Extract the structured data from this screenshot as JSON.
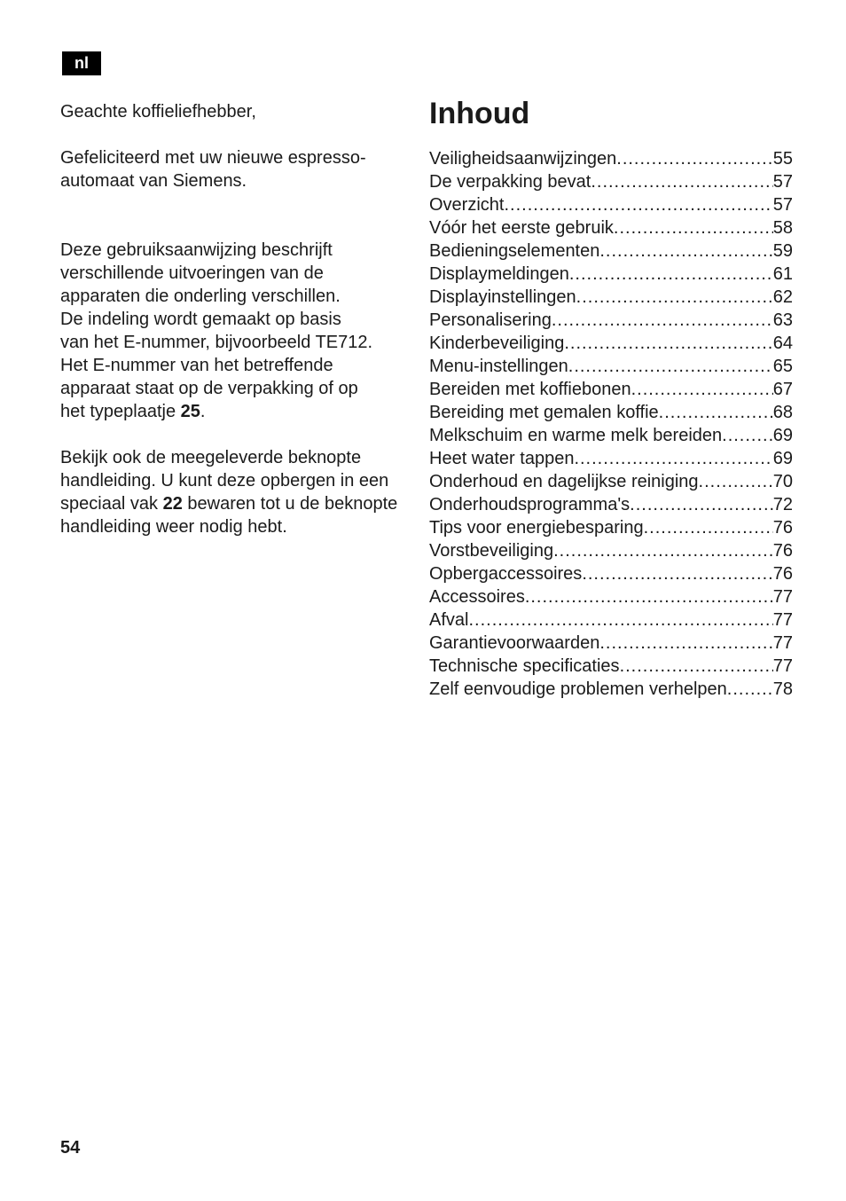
{
  "lang_badge": "nl",
  "left": {
    "greeting": "Geachte koffieliefhebber,",
    "congrats_prefix": "Gefeliciteerd met uw nieuwe espresso",
    "congrats_suffix": "automaat van Siemens.",
    "desc_l1": "Deze gebruiksaanwijzing beschrijft",
    "desc_l2": "verschillende uitvoeringen van de",
    "desc_l3": "apparaten die onderling verschillen.",
    "desc_l4": "De indeling wordt gemaakt op basis",
    "desc_l5": "van het E-nummer, bijvoorbeeld TE712.",
    "desc_l6": "Het E-nummer van het betreffende",
    "desc_l7": "apparaat staat op de verpakking of op",
    "desc_l8a": "het typeplaatje ",
    "desc_l8b": "25",
    "desc_l8c": ".",
    "ref_l1": "Bekijk ook de meegeleverde beknopte",
    "ref_l2": "handleiding. U kunt deze opbergen in een",
    "ref_l3a": "speciaal vak ",
    "ref_l3b": "22",
    "ref_l3c": " bewaren tot u de beknopte",
    "ref_l4": "handleiding weer nodig hebt."
  },
  "right": {
    "title": "Inhoud"
  },
  "toc": [
    {
      "label": "Veiligheidsaanwijzingen",
      "page": "55"
    },
    {
      "label": "De verpakking bevat",
      "page": "57"
    },
    {
      "label": "Overzicht ",
      "page": "57"
    },
    {
      "label": "Vóór het eerste gebruik ",
      "page": "58"
    },
    {
      "label": "Bedieningselementen",
      "page": "59"
    },
    {
      "label": "Displaymeldingen ",
      "page": "61"
    },
    {
      "label": "Displayinstellingen",
      "page": "62"
    },
    {
      "label": "Personalisering",
      "page": "63"
    },
    {
      "label": "Kinderbeveiliging ",
      "page": "64"
    },
    {
      "label": "Menu-instellingen ",
      "page": "65"
    },
    {
      "label": "Bereiden met koffiebonen",
      "page": "67"
    },
    {
      "label": "Bereiding met gemalen koffie ",
      "page": "68"
    },
    {
      "label": "Melkschuim en warme melk bereiden ",
      "page": "69"
    },
    {
      "label": "Heet water tappen ",
      "page": "69"
    },
    {
      "label": "Onderhoud en dagelijkse reiniging",
      "page": "70"
    },
    {
      "label": "Onderhoudsprogramma's ",
      "page": "72"
    },
    {
      "label": "Tips voor energiebesparing",
      "page": "76"
    },
    {
      "label": "Vorstbeveiliging ",
      "page": "76"
    },
    {
      "label": "Opbergaccessoires",
      "page": "76"
    },
    {
      "label": "Accessoires ",
      "page": "77"
    },
    {
      "label": "Afval",
      "page": "77"
    },
    {
      "label": "Garantievoorwaarden",
      "page": "77"
    },
    {
      "label": "Technische specificaties",
      "page": "77"
    },
    {
      "label": "Zelf eenvoudige problemen verhelpen ",
      "page": "78"
    }
  ],
  "page_number": "54"
}
